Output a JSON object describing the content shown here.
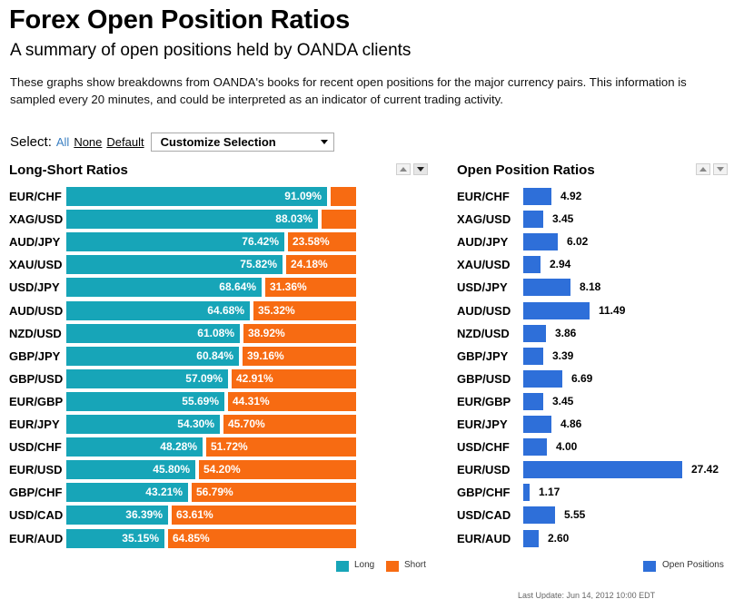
{
  "page": {
    "title": "Forex Open Position Ratios",
    "subtitle": "A summary of open positions held by OANDA clients",
    "description": "These graphs show breakdowns from OANDA's books for recent open positions for the major currency pairs. This information is sampled every 20 minutes, and could be interpreted as an indicator of current trading activity.",
    "last_update": "Last Update: Jun 14, 2012 10:00 EDT"
  },
  "select_bar": {
    "label": "Select:",
    "all": "All",
    "none": "None",
    "default": "Default",
    "dropdown_value": "Customize Selection"
  },
  "colors": {
    "long": "#17a5b8",
    "short": "#f76b12",
    "open_positions": "#2e6fd9"
  },
  "chart_data": [
    {
      "type": "bar",
      "stacked": true,
      "orientation": "horizontal",
      "title": "Long-Short Ratios",
      "categories": [
        "EUR/CHF",
        "XAG/USD",
        "AUD/JPY",
        "XAU/USD",
        "USD/JPY",
        "AUD/USD",
        "NZD/USD",
        "GBP/JPY",
        "GBP/USD",
        "EUR/GBP",
        "EUR/JPY",
        "USD/CHF",
        "EUR/USD",
        "GBP/CHF",
        "USD/CAD",
        "EUR/AUD"
      ],
      "series": [
        {
          "name": "Long",
          "values": [
            91.09,
            88.03,
            76.42,
            75.82,
            68.64,
            64.68,
            61.08,
            60.84,
            57.09,
            55.69,
            54.3,
            48.28,
            45.8,
            43.21,
            36.39,
            35.15
          ]
        },
        {
          "name": "Short",
          "values": [
            8.91,
            11.97,
            23.58,
            24.18,
            31.36,
            35.32,
            38.92,
            39.16,
            42.91,
            44.31,
            45.7,
            51.72,
            54.2,
            56.79,
            63.61,
            64.85
          ]
        }
      ],
      "value_labels_long": [
        "91.09%",
        "88.03%",
        "76.42%",
        "75.82%",
        "68.64%",
        "64.68%",
        "61.08%",
        "60.84%",
        "57.09%",
        "55.69%",
        "54.30%",
        "48.28%",
        "45.80%",
        "43.21%",
        "36.39%",
        "35.15%"
      ],
      "value_labels_short": [
        "",
        "",
        "23.58%",
        "24.18%",
        "31.36%",
        "35.32%",
        "38.92%",
        "39.16%",
        "42.91%",
        "44.31%",
        "45.70%",
        "51.72%",
        "54.20%",
        "56.79%",
        "63.61%",
        "64.85%"
      ],
      "legend": [
        "Long",
        "Short"
      ],
      "legend_position": "bottom-right",
      "xlim": [
        0,
        100
      ]
    },
    {
      "type": "bar",
      "orientation": "horizontal",
      "title": "Open Position Ratios",
      "categories": [
        "EUR/CHF",
        "XAG/USD",
        "AUD/JPY",
        "XAU/USD",
        "USD/JPY",
        "AUD/USD",
        "NZD/USD",
        "GBP/JPY",
        "GBP/USD",
        "EUR/GBP",
        "EUR/JPY",
        "USD/CHF",
        "EUR/USD",
        "GBP/CHF",
        "USD/CAD",
        "EUR/AUD"
      ],
      "series": [
        {
          "name": "Open Positions",
          "values": [
            4.92,
            3.45,
            6.02,
            2.94,
            8.18,
            11.49,
            3.86,
            3.39,
            6.69,
            3.45,
            4.86,
            4.0,
            27.42,
            1.17,
            5.55,
            2.6
          ]
        }
      ],
      "value_labels": [
        "4.92",
        "3.45",
        "6.02",
        "2.94",
        "8.18",
        "11.49",
        "3.86",
        "3.39",
        "6.69",
        "3.45",
        "4.86",
        "4.00",
        "27.42",
        "1.17",
        "5.55",
        "2.60"
      ],
      "legend": [
        "Open Positions"
      ],
      "legend_position": "bottom-right",
      "xlim": [
        0,
        27.42
      ]
    }
  ]
}
